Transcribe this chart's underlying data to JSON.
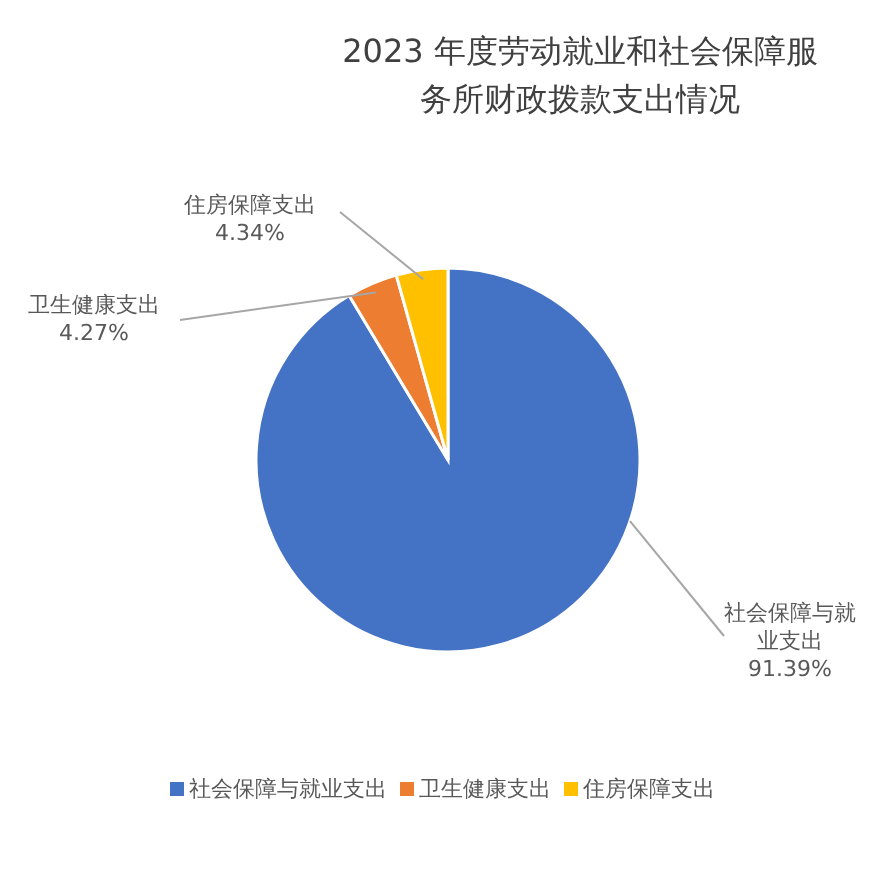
{
  "chart_data": {
    "type": "pie",
    "title": "2023 年度劳动就业和社会保障服务所财政拨款支出情况",
    "categories": [
      "社会保障与就业支出",
      "卫生健康支出",
      "住房保障支出"
    ],
    "values": [
      91.39,
      4.27,
      4.34
    ],
    "value_labels": [
      "91.39%",
      "4.27%",
      "4.34%"
    ],
    "colors": [
      "#4472c4",
      "#ed7d31",
      "#ffc000"
    ],
    "legend": "bottom"
  }
}
